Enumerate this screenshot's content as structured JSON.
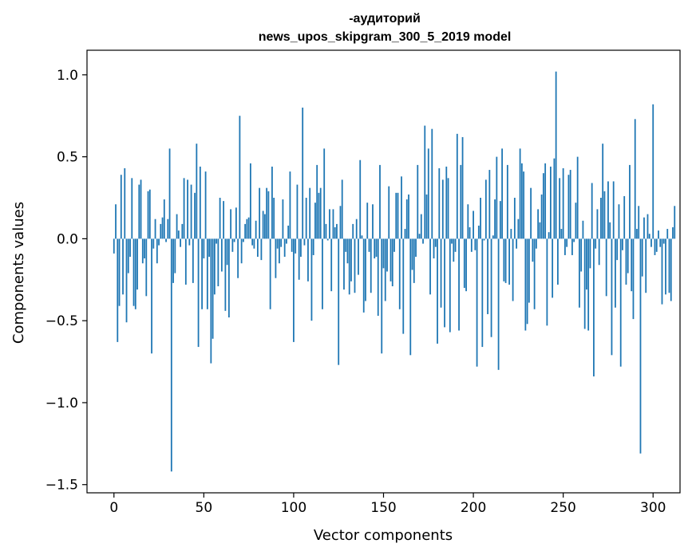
{
  "chart_data": {
    "type": "bar",
    "title_lines": [
      "-аудиторий",
      "news_upos_skipgram_300_5_2019 model"
    ],
    "xlabel": "Vector components",
    "ylabel": "Components values",
    "xlim": [
      -15,
      315
    ],
    "ylim": [
      -1.55,
      1.15
    ],
    "xticks": [
      0,
      50,
      100,
      150,
      200,
      250,
      300
    ],
    "xtick_labels": [
      "0",
      "50",
      "100",
      "150",
      "200",
      "250",
      "300"
    ],
    "yticks": [
      -1.5,
      -1.0,
      -0.5,
      0.0,
      0.5,
      1.0
    ],
    "ytick_labels": [
      "−1.5",
      "−1.0",
      "−0.5",
      "0.0",
      "0.5",
      "1.0"
    ],
    "grid": false,
    "bar_color": "#1f77b4",
    "values": [
      -0.09,
      0.21,
      -0.63,
      -0.41,
      0.39,
      -0.34,
      0.43,
      -0.51,
      -0.21,
      -0.11,
      0.37,
      -0.41,
      -0.43,
      -0.31,
      0.33,
      0.36,
      -0.15,
      -0.12,
      -0.35,
      0.29,
      0.3,
      -0.7,
      -0.06,
      0.12,
      -0.15,
      -0.04,
      0.09,
      0.13,
      0.24,
      -0.02,
      0.12,
      0.55,
      -1.42,
      -0.27,
      -0.21,
      0.15,
      0.05,
      -0.05,
      0.09,
      0.37,
      -0.28,
      0.36,
      -0.04,
      0.33,
      -0.27,
      0.28,
      0.58,
      -0.66,
      0.44,
      -0.43,
      -0.12,
      0.41,
      -0.43,
      -0.11,
      -0.76,
      -0.61,
      -0.34,
      -0.03,
      -0.29,
      0.25,
      -0.2,
      0.23,
      -0.44,
      -0.16,
      -0.48,
      0.18,
      -0.08,
      -0.02,
      0.19,
      -0.24,
      0.75,
      -0.15,
      -0.02,
      0.09,
      0.12,
      0.13,
      0.46,
      -0.04,
      -0.06,
      0.11,
      -0.11,
      0.31,
      -0.13,
      0.17,
      0.15,
      0.31,
      0.29,
      -0.43,
      0.44,
      0.25,
      -0.24,
      -0.06,
      -0.15,
      -0.05,
      0.24,
      -0.11,
      -0.03,
      0.08,
      0.41,
      -0.08,
      -0.63,
      -0.09,
      0.33,
      -0.25,
      -0.11,
      0.8,
      -0.04,
      0.25,
      -0.26,
      0.31,
      -0.5,
      -0.1,
      0.22,
      0.45,
      0.28,
      0.31,
      -0.43,
      0.55,
      0.09,
      -0.01,
      0.18,
      -0.32,
      0.18,
      0.07,
      0.09,
      -0.77,
      0.2,
      0.36,
      -0.31,
      -0.08,
      -0.15,
      -0.34,
      -0.26,
      0.09,
      -0.33,
      0.12,
      -0.22,
      0.48,
      0.02,
      -0.45,
      -0.38,
      0.22,
      -0.08,
      -0.33,
      0.21,
      -0.12,
      -0.11,
      -0.47,
      0.45,
      -0.7,
      -0.18,
      -0.38,
      -0.2,
      0.32,
      -0.26,
      -0.29,
      -0.08,
      0.28,
      0.28,
      -0.43,
      0.38,
      -0.58,
      0.06,
      0.24,
      0.27,
      -0.71,
      -0.19,
      -0.27,
      -0.11,
      0.45,
      0.03,
      0.15,
      -0.03,
      0.69,
      0.27,
      0.55,
      -0.34,
      0.67,
      -0.12,
      -0.05,
      -0.64,
      0.43,
      -0.42,
      0.36,
      -0.54,
      0.44,
      0.37,
      -0.57,
      -0.03,
      -0.14,
      -0.08,
      0.64,
      -0.56,
      0.45,
      0.62,
      -0.3,
      -0.32,
      0.21,
      0.07,
      -0.08,
      0.17,
      -0.07,
      -0.78,
      0.08,
      0.25,
      -0.66,
      -0.01,
      0.36,
      -0.46,
      0.42,
      -0.6,
      0.02,
      0.24,
      0.5,
      -0.8,
      0.23,
      0.55,
      -0.26,
      -0.27,
      0.45,
      -0.28,
      0.06,
      -0.38,
      0.25,
      -0.06,
      0.12,
      0.55,
      0.46,
      0.41,
      -0.56,
      -0.52,
      -0.39,
      0.31,
      -0.14,
      -0.43,
      -0.06,
      0.18,
      0.1,
      0.27,
      0.4,
      0.46,
      -0.53,
      0.04,
      0.44,
      -0.36,
      0.49,
      1.02,
      -0.28,
      0.37,
      0.06,
      0.43,
      -0.1,
      -0.05,
      0.39,
      0.42,
      -0.1,
      -0.02,
      0.22,
      0.5,
      -0.42,
      -0.2,
      0.11,
      -0.55,
      -0.31,
      -0.56,
      -0.18,
      0.34,
      -0.84,
      -0.06,
      0.18,
      -0.16,
      0.25,
      0.58,
      0.29,
      -0.35,
      0.35,
      0.1,
      -0.71,
      0.35,
      -0.42,
      -0.13,
      0.21,
      -0.78,
      -0.07,
      0.26,
      -0.28,
      -0.21,
      0.45,
      -0.32,
      -0.49,
      0.73,
      0.06,
      0.2,
      -1.31,
      -0.23,
      0.13,
      -0.33,
      0.15,
      0.03,
      -0.05,
      0.82,
      -0.1,
      -0.08,
      0.05,
      -0.05,
      -0.4,
      -0.03,
      -0.34,
      0.06,
      -0.33,
      -0.38,
      0.07,
      0.2
    ]
  }
}
